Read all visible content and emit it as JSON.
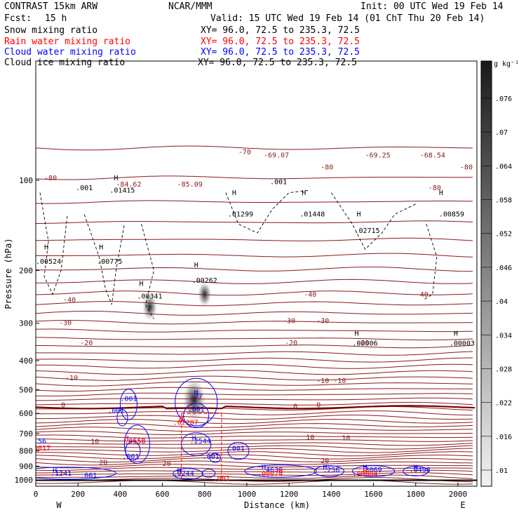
{
  "header": {
    "model": "CONTRAST 15km ARW",
    "center": "NCAR/MMM",
    "init": "Init: 00 UTC Wed 19 Feb 14",
    "fcst_label": "Fcst:",
    "fcst_value": "15 h",
    "valid": "Valid: 15 UTC Wed 19 Feb 14 (01 ChT Thu 20 Feb 14)",
    "fields": [
      {
        "name": "Snow mixing ratio",
        "xy": "XY=  96.0, 72.5 to 235.3, 72.5",
        "color": "#000000"
      },
      {
        "name": "Rain water mixing ratio",
        "xy": "XY=  96.0, 72.5 to 235.3, 72.5",
        "color": "#ff0000"
      },
      {
        "name": "Cloud water mixing ratio",
        "xy": "XY=  96.0, 72.5 to 235.3, 72.5",
        "color": "#0000ff"
      },
      {
        "name": "Cloud ice mixing ratio",
        "xy": "XY=  96.0, 72.5 to 235.3, 72.5",
        "color": "#000000"
      }
    ]
  },
  "colorbar": {
    "unit": "g kg⁻¹",
    "labels": [
      ".076",
      ".07",
      ".064",
      ".058",
      ".052",
      ".046",
      ".04",
      ".034",
      ".028",
      ".022",
      ".016",
      ".01"
    ],
    "values": [
      0.076,
      0.07,
      0.064,
      0.058,
      0.052,
      0.046,
      0.04,
      0.034,
      0.028,
      0.022,
      0.016,
      0.01
    ]
  },
  "colors": {
    "temperature": "#8b1a1a",
    "freezing_line": "#7a0000",
    "rain": "#ff0000",
    "cloud_water": "#0000ff",
    "snow": "#000000",
    "ground": "#000000"
  },
  "chart_data": {
    "type": "cross-section",
    "xlabel": "Distance (km)",
    "ylabel": "Pressure (hPa)",
    "xlim": [
      0,
      2090
    ],
    "ylim": [
      1050,
      40
    ],
    "y_scale": "log",
    "x_ticks": [
      "0",
      "200",
      "400",
      "600",
      "800",
      "1000",
      "1200",
      "1400",
      "1600",
      "1800",
      "2000"
    ],
    "x_tick_values": [
      0,
      200,
      400,
      600,
      800,
      1000,
      1200,
      1400,
      1600,
      1800,
      2000
    ],
    "y_ticks": [
      "100",
      "200",
      "300",
      "400",
      "500",
      "600",
      "700",
      "800",
      "900",
      "1000"
    ],
    "y_tick_values": [
      100,
      200,
      300,
      400,
      500,
      600,
      700,
      800,
      900,
      1000
    ],
    "end_labels": {
      "left": "W",
      "right": "E"
    },
    "temperature_contours": [
      {
        "label": "-80",
        "x": 70,
        "p": 100
      },
      {
        "label": "-80",
        "x": 1380,
        "p": 92
      },
      {
        "label": "-80",
        "x": 2040,
        "p": 92
      },
      {
        "label": "-70",
        "x": 990,
        "p": 82
      },
      {
        "label": "-69.07",
        "x": 1140,
        "p": 84
      },
      {
        "label": "-69.25",
        "x": 1620,
        "p": 84
      },
      {
        "label": "-68.54",
        "x": 1880,
        "p": 84
      },
      {
        "label": "-85.09",
        "x": 730,
        "p": 105
      },
      {
        "label": "-84.62",
        "x": 440,
        "p": 105
      },
      {
        "label": "-80",
        "x": 1890,
        "p": 108
      },
      {
        "label": "-40",
        "x": 160,
        "p": 255
      },
      {
        "label": "-40",
        "x": 1300,
        "p": 245
      },
      {
        "label": "-40",
        "x": 1830,
        "p": 245
      },
      {
        "label": "-30",
        "x": 140,
        "p": 305
      },
      {
        "label": "-30",
        "x": 1200,
        "p": 300
      },
      {
        "label": "-30",
        "x": 1360,
        "p": 300
      },
      {
        "label": "-20",
        "x": 240,
        "p": 355
      },
      {
        "label": "-20",
        "x": 1210,
        "p": 355
      },
      {
        "label": "-20",
        "x": 1550,
        "p": 355
      },
      {
        "label": "-10",
        "x": 170,
        "p": 465
      },
      {
        "label": "-10",
        "x": 1360,
        "p": 475
      },
      {
        "label": "-10",
        "x": 1440,
        "p": 475
      },
      {
        "label": "0",
        "x": 130,
        "p": 572
      },
      {
        "label": "0",
        "x": 1230,
        "p": 578
      },
      {
        "label": "0",
        "x": 1340,
        "p": 572
      },
      {
        "label": "10",
        "x": 280,
        "p": 758
      },
      {
        "label": "10",
        "x": 1300,
        "p": 733
      },
      {
        "label": "10",
        "x": 1470,
        "p": 738
      },
      {
        "label": "20",
        "x": 320,
        "p": 890
      },
      {
        "label": "20",
        "x": 620,
        "p": 898
      },
      {
        "label": "20",
        "x": 1370,
        "p": 878
      }
    ],
    "rain_maxima": [
      {
        "label": "H",
        "x": 690,
        "p": 635
      },
      {
        "label": ".02287",
        "x": 710,
        "p": 655
      },
      {
        "label": "H",
        "x": 430,
        "p": 740
      },
      {
        "label": ".0558",
        "x": 470,
        "p": 756
      },
      {
        "label": ".0017",
        "x": 20,
        "p": 798
      },
      {
        "label": "H",
        "x": 1160,
        "p": 950
      },
      {
        "label": ".00074",
        "x": 1110,
        "p": 970
      },
      {
        "label": "H",
        "x": 1560,
        "p": 950
      },
      {
        "label": ".00004",
        "x": 1560,
        "p": 970
      },
      {
        "label": ".001",
        "x": 880,
        "p": 1005
      }
    ],
    "cloud_water_maxima": [
      {
        "label": ".001",
        "x": 440,
        "p": 545
      },
      {
        "label": ".001",
        "x": 380,
        "p": 598
      },
      {
        "label": ".001",
        "x": 760,
        "p": 592
      },
      {
        "label": "H",
        "x": 760,
        "p": 520
      },
      {
        "label": ".27",
        "x": 760,
        "p": 535
      },
      {
        "label": "H",
        "x": 430,
        "p": 740
      },
      {
        "label": ".3558",
        "x": 470,
        "p": 756
      },
      {
        "label": "H",
        "x": 750,
        "p": 740
      },
      {
        "label": ".2544",
        "x": 780,
        "p": 756
      },
      {
        "label": ".56",
        "x": 20,
        "p": 756
      },
      {
        "label": ".001",
        "x": 950,
        "p": 800
      },
      {
        "label": ".001",
        "x": 830,
        "p": 850
      },
      {
        "label": ".001",
        "x": 450,
        "p": 850
      },
      {
        "label": "H",
        "x": 90,
        "p": 948
      },
      {
        "label": ".1241",
        "x": 120,
        "p": 968
      },
      {
        "label": ".001",
        "x": 250,
        "p": 985
      },
      {
        "label": "H",
        "x": 680,
        "p": 948
      },
      {
        "label": ".0244",
        "x": 700,
        "p": 968
      },
      {
        "label": "H",
        "x": 1080,
        "p": 925
      },
      {
        "label": ".4636",
        "x": 1120,
        "p": 942
      },
      {
        "label": "H",
        "x": 1370,
        "p": 925
      },
      {
        "label": ".256",
        "x": 1400,
        "p": 942
      },
      {
        "label": "H",
        "x": 1560,
        "p": 925
      },
      {
        "label": ".3069",
        "x": 1590,
        "p": 942
      },
      {
        "label": "H",
        "x": 1800,
        "p": 925
      },
      {
        "label": ".0498",
        "x": 1820,
        "p": 942
      }
    ],
    "snow_maxima": [
      {
        "label": "H",
        "x": 380,
        "p": 100
      },
      {
        "label": ".01415",
        "x": 410,
        "p": 110
      },
      {
        "label": "H",
        "x": 940,
        "p": 112
      },
      {
        "label": ".01299",
        "x": 970,
        "p": 132
      },
      {
        "label": "H",
        "x": 1270,
        "p": 112
      },
      {
        "label": ".01448",
        "x": 1310,
        "p": 132
      },
      {
        "label": "H",
        "x": 1530,
        "p": 132
      },
      {
        "label": ".02715",
        "x": 1570,
        "p": 150
      },
      {
        "label": "H",
        "x": 1920,
        "p": 112
      },
      {
        "label": ".00859",
        "x": 1970,
        "p": 132
      },
      {
        "label": "H",
        "x": 50,
        "p": 170
      },
      {
        "label": ".00524",
        "x": 60,
        "p": 190
      },
      {
        "label": "H",
        "x": 310,
        "p": 170
      },
      {
        "label": ".00775",
        "x": 350,
        "p": 190
      },
      {
        "label": "H",
        "x": 500,
        "p": 225
      },
      {
        "label": ".00341",
        "x": 540,
        "p": 248
      },
      {
        "label": "H",
        "x": 760,
        "p": 195
      },
      {
        "label": ".00262",
        "x": 800,
        "p": 220
      },
      {
        "label": "H",
        "x": 1520,
        "p": 330
      },
      {
        "label": ".00006",
        "x": 1560,
        "p": 356
      },
      {
        "label": "H",
        "x": 1990,
        "p": 330
      },
      {
        "label": ".00003",
        "x": 2020,
        "p": 356
      },
      {
        "label": ".001",
        "x": 230,
        "p": 108
      },
      {
        "label": ".001",
        "x": 1150,
        "p": 103
      }
    ],
    "ice_shading": [
      {
        "x": 750,
        "p": 540,
        "max": 0.076
      },
      {
        "x": 800,
        "p": 240,
        "max": 0.03
      },
      {
        "x": 540,
        "p": 265,
        "max": 0.035
      }
    ]
  }
}
